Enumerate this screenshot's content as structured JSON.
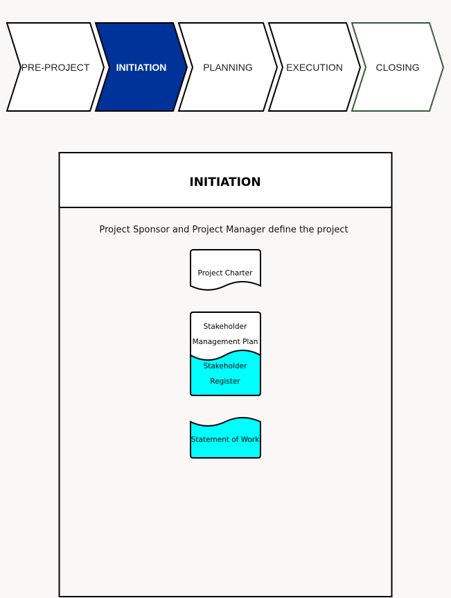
{
  "phases": [
    {
      "label": "PRE-PROJECT",
      "state": "default"
    },
    {
      "label": "INITIATION",
      "state": "active"
    },
    {
      "label": "PLANNING",
      "state": "default"
    },
    {
      "label": "EXECUTION",
      "state": "default"
    },
    {
      "label": "CLOSING",
      "state": "final"
    }
  ],
  "panel": {
    "title": "INITIATION",
    "description": "Project Sponsor and Project Manager define the project"
  },
  "documents": {
    "charter": {
      "label": "Project Charter"
    },
    "stakeholder_plan": {
      "line1": "Stakeholder",
      "line2": "Management Plan"
    },
    "stakeholder_register": {
      "line1": "Stakeholder",
      "line2": "Register"
    },
    "statement_of_work": {
      "label": "Statement of Work"
    }
  },
  "colors": {
    "active_phase": "#003399",
    "final_phase_stroke": "#3a5a3a",
    "highlight_doc": "#00ffff",
    "background": "#faf7f7"
  }
}
